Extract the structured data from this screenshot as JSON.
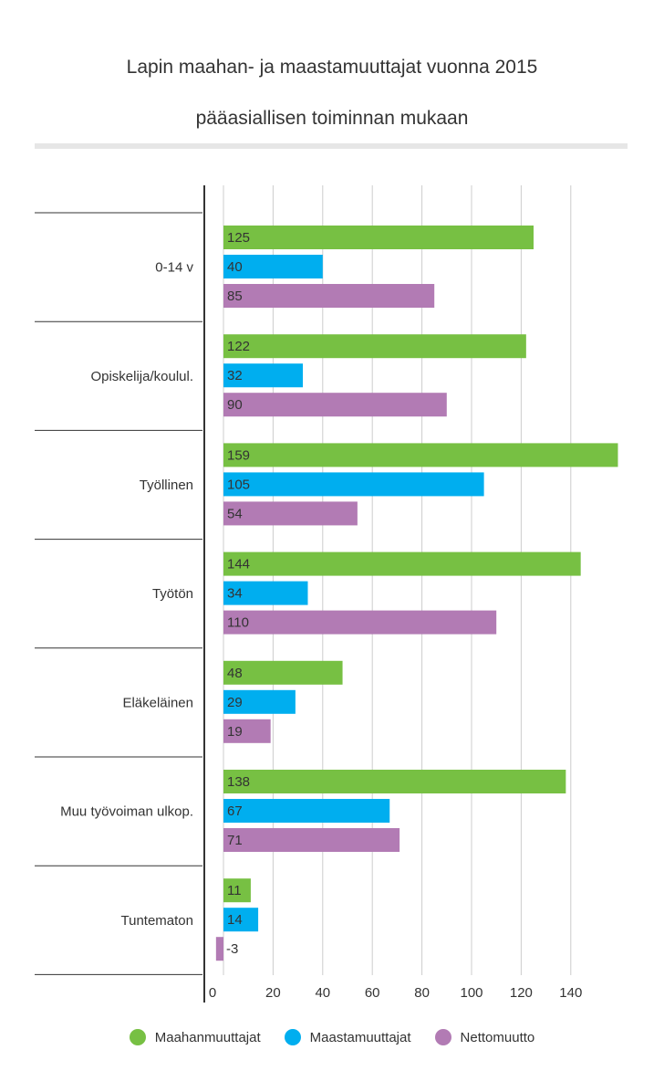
{
  "title_line1": "Lapin maahan- ja maastamuuttajat vuonna 2015",
  "title_line2": "pääasiallisen toiminnan mukaan",
  "colors": {
    "Maahanmuuttajat": "#77c043",
    "Maastamuuttajat": "#00aeef",
    "Nettomuutto": "#b27bb4"
  },
  "chart_data": {
    "type": "bar",
    "orientation": "horizontal",
    "title": "Lapin maahan- ja maastamuuttajat vuonna 2015 pääasiallisen toiminnan mukaan",
    "categories": [
      "0-14 v",
      "Opiskelija/koulul.",
      "Työllinen",
      "Työtön",
      "Eläkeläinen",
      "Muu työvoiman ulkop.",
      "Tuntematon"
    ],
    "series": [
      {
        "name": "Maahanmuuttajat",
        "values": [
          125,
          122,
          159,
          144,
          48,
          138,
          11
        ]
      },
      {
        "name": "Maastamuuttajat",
        "values": [
          40,
          32,
          105,
          34,
          29,
          67,
          14
        ]
      },
      {
        "name": "Nettomuutto",
        "values": [
          85,
          90,
          54,
          110,
          19,
          71,
          -3
        ]
      }
    ],
    "xlim": [
      0,
      160
    ],
    "x_ticks": [
      0,
      20,
      40,
      60,
      80,
      100,
      120,
      140
    ],
    "grid": true,
    "legend_position": "bottom"
  }
}
